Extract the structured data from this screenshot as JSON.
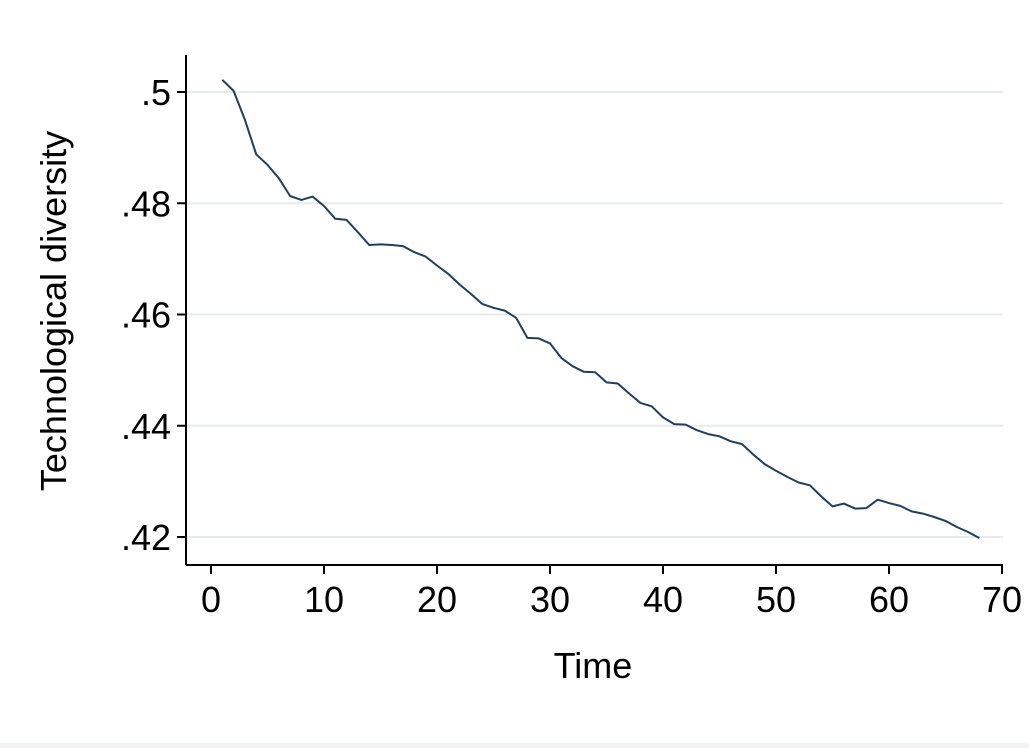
{
  "chart_data": {
    "type": "line",
    "title": "",
    "xlabel": "Time",
    "ylabel": "Technological diversity",
    "xlim": [
      -2,
      70
    ],
    "ylim": [
      0.415,
      0.5065
    ],
    "x_ticks": [
      0,
      10,
      20,
      30,
      40,
      50,
      60,
      70
    ],
    "x_tick_labels": [
      "0",
      "10",
      "20",
      "30",
      "40",
      "50",
      "60",
      "70"
    ],
    "y_ticks": [
      0.42,
      0.44,
      0.46,
      0.48,
      0.5
    ],
    "y_tick_labels": [
      ".42",
      ".44",
      ".46",
      ".48",
      ".5"
    ],
    "grid": "horizontal",
    "line_color": "#1f3f5f",
    "grid_color": "#e6ecec",
    "series": [
      {
        "x": [
          1,
          2,
          3,
          4,
          5,
          6,
          7,
          8,
          9,
          10,
          11,
          12,
          13,
          14,
          15,
          16,
          17,
          18,
          19,
          20,
          21,
          22,
          23,
          24,
          25,
          26,
          27,
          28,
          29,
          30,
          31,
          32,
          33,
          34,
          35,
          36,
          37,
          38,
          39,
          40,
          41,
          42,
          43,
          44,
          45,
          46,
          47,
          48,
          49,
          50,
          51,
          52,
          53,
          54,
          55,
          56,
          57,
          58,
          59,
          60,
          61,
          62,
          63,
          64,
          65,
          66,
          67,
          68
        ],
        "values": [
          0.5022,
          0.5002,
          0.495,
          0.4888,
          0.4869,
          0.4845,
          0.4813,
          0.4806,
          0.4812,
          0.4795,
          0.4772,
          0.477,
          0.4748,
          0.4725,
          0.4726,
          0.4725,
          0.4723,
          0.4712,
          0.4704,
          0.4688,
          0.4673,
          0.4654,
          0.4637,
          0.4619,
          0.4612,
          0.4607,
          0.4594,
          0.4558,
          0.4557,
          0.4548,
          0.4522,
          0.4507,
          0.4497,
          0.4496,
          0.4478,
          0.4476,
          0.4458,
          0.4441,
          0.4435,
          0.4415,
          0.4403,
          0.4402,
          0.4392,
          0.4385,
          0.4381,
          0.4372,
          0.4367,
          0.4348,
          0.4331,
          0.4319,
          0.4308,
          0.4298,
          0.4293,
          0.4273,
          0.4255,
          0.426,
          0.4251,
          0.4252,
          0.4267,
          0.4261,
          0.4256,
          0.4246,
          0.4242,
          0.4236,
          0.4229,
          0.4218,
          0.4209,
          0.4198
        ]
      }
    ]
  }
}
